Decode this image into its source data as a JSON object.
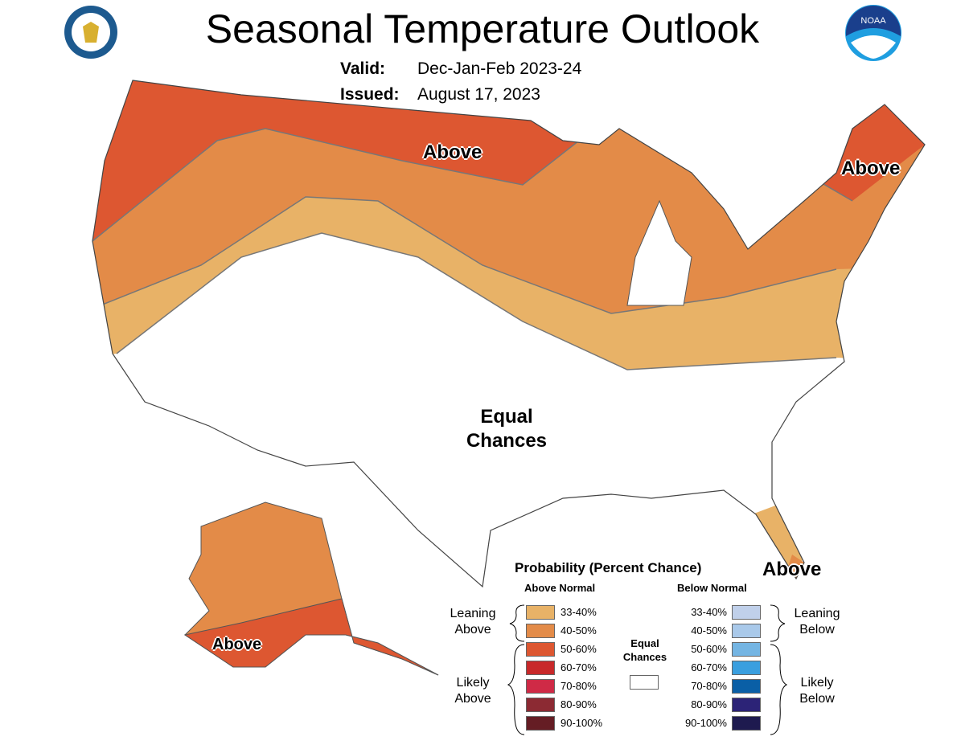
{
  "header": {
    "title": "Seasonal Temperature Outlook",
    "valid_label": "Valid:",
    "valid_value": "Dec-Jan-Feb 2023-24",
    "issued_label": "Issued:",
    "issued_value": "August 17, 2023",
    "left_logo": "department-of-commerce-seal",
    "right_logo_text": "NOAA"
  },
  "map": {
    "labels": [
      "Above",
      "Above",
      "Equal Chances",
      "Above",
      "Above"
    ],
    "colors": {
      "above_33_40": "#e8b267",
      "above_40_50": "#e38b48",
      "above_50_60": "#dd5731",
      "equal": "#ffffff"
    }
  },
  "legend": {
    "title": "Probability (Percent Chance)",
    "above_header": "Above Normal",
    "below_header": "Below Normal",
    "leaning_above": "Leaning Above",
    "likely_above": "Likely Above",
    "leaning_below": "Leaning Below",
    "likely_below": "Likely Below",
    "equal_chances": "Equal Chances",
    "above": [
      {
        "range": "33-40%",
        "color": "#e8b267"
      },
      {
        "range": "40-50%",
        "color": "#e38b48"
      },
      {
        "range": "50-60%",
        "color": "#dd5731"
      },
      {
        "range": "60-70%",
        "color": "#c8292a"
      },
      {
        "range": "70-80%",
        "color": "#cf2a46"
      },
      {
        "range": "80-90%",
        "color": "#8c2a33"
      },
      {
        "range": "90-100%",
        "color": "#651d24"
      }
    ],
    "below": [
      {
        "range": "33-40%",
        "color": "#c0d0ea"
      },
      {
        "range": "40-50%",
        "color": "#a9c9ea"
      },
      {
        "range": "50-60%",
        "color": "#74b5e3"
      },
      {
        "range": "60-70%",
        "color": "#3a9fdf"
      },
      {
        "range": "70-80%",
        "color": "#0a5fa6"
      },
      {
        "range": "80-90%",
        "color": "#2c2377"
      },
      {
        "range": "90-100%",
        "color": "#1e1a4f"
      }
    ]
  }
}
